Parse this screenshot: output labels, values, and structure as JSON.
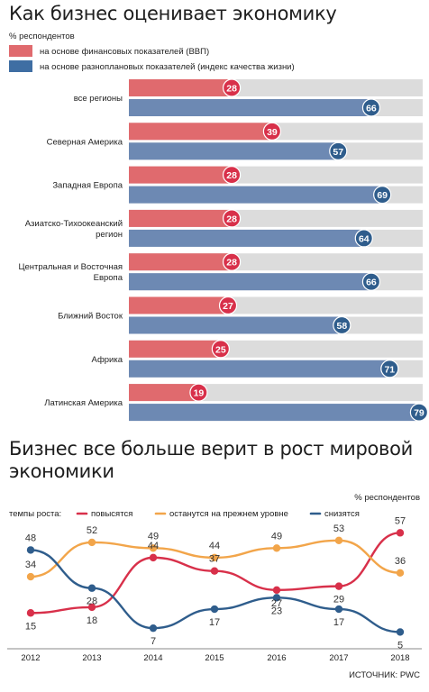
{
  "chart_data": [
    {
      "type": "bar",
      "title": "Как бизнес оценивает экономику",
      "subtitle": "% респондентов",
      "categories": [
        "все регионы",
        "Северная Америка",
        "Западная Европа",
        "Азиатско-Тихоокеанский регион",
        "Центральная и Восточная Европа",
        "Ближний Восток",
        "Африка",
        "Латинская Америка"
      ],
      "category_lines": [
        [
          "все регионы"
        ],
        [
          "Северная Америка"
        ],
        [
          "Западная Европа"
        ],
        [
          "Азиатско-Тихоокеанский",
          "регион"
        ],
        [
          "Центральная и Восточная",
          "Европа"
        ],
        [
          "Ближний Восток"
        ],
        [
          "Африка"
        ],
        [
          "Латинская Америка"
        ]
      ],
      "series": [
        {
          "name": "на основе финансовых показателей (ВВП)",
          "color": "#e06a6e",
          "dot_color": "#d8304a",
          "values": [
            28,
            39,
            28,
            28,
            28,
            27,
            25,
            19
          ]
        },
        {
          "name": "на основе разноплановых показателей (индекс качества жизни)",
          "color": "#6d89b3",
          "dot_color": "#2f5d8c",
          "values": [
            66,
            57,
            69,
            64,
            66,
            58,
            71,
            79
          ]
        }
      ],
      "xlim": [
        0,
        80
      ],
      "track_color": "#dcdcdc"
    },
    {
      "type": "line",
      "title": "Бизнес все больше верит в рост мировой экономики",
      "unit_label": "% респондентов",
      "legend_label": "темпы роста:",
      "x": [
        "2012",
        "2013",
        "2014",
        "2015",
        "2016",
        "2017",
        "2018"
      ],
      "series": [
        {
          "name": "повысятся",
          "color": "#d8304a",
          "values": [
            15,
            18,
            44,
            37,
            27,
            29,
            57
          ]
        },
        {
          "name": "останутся на прежнем уровне",
          "color": "#f2a54a",
          "values": [
            34,
            52,
            49,
            44,
            49,
            53,
            36
          ]
        },
        {
          "name": "снизятся",
          "color": "#2f5d8c",
          "values": [
            48,
            28,
            7,
            17,
            23,
            17,
            5
          ]
        }
      ],
      "ylim": [
        0,
        60
      ],
      "source": "ИСТОЧНИК: PWC"
    }
  ]
}
